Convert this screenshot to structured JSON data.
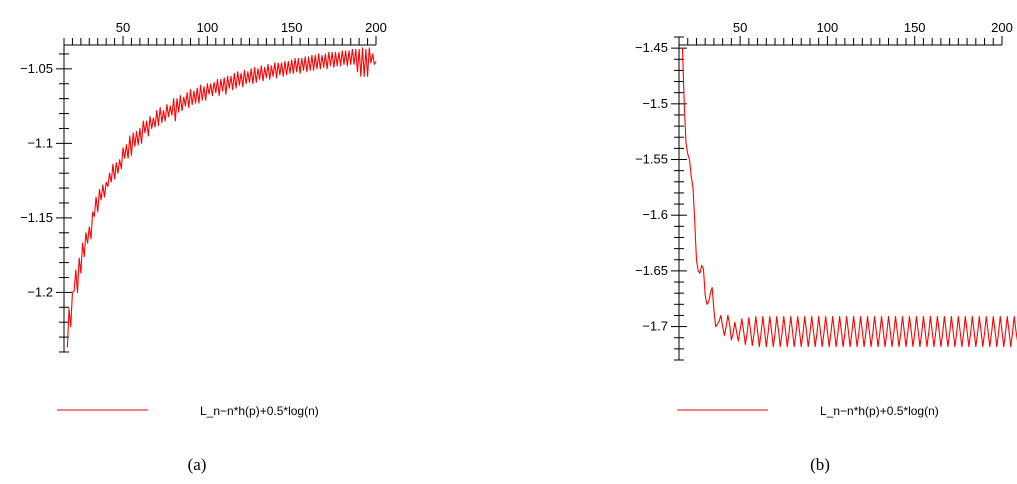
{
  "colors": {
    "series": "#ff0000",
    "axes": "#000000"
  },
  "chart_data": [
    {
      "type": "line",
      "caption": "(a)",
      "xlim": [
        15,
        200
      ],
      "ylim": [
        -1.24,
        -1.034
      ],
      "x_ticks": [
        50,
        100,
        150,
        200
      ],
      "x_tick_labels": [
        "50",
        "100",
        "150",
        "200"
      ],
      "y_ticks": [
        -1.05,
        -1.1,
        -1.15,
        -1.2
      ],
      "y_tick_labels": [
        "-1.05",
        "-1.1",
        "-1.15",
        "-1.2"
      ],
      "x_axis_position": "top",
      "grid": false,
      "legend_position": "bottom",
      "series": [
        {
          "name": "L_n-n*h(p)+0.5*log(n)",
          "x_start": 17,
          "x_step": 1,
          "values": [
            -1.237,
            -1.211,
            -1.223,
            -1.2,
            -1.199,
            -1.185,
            -1.2,
            -1.177,
            -1.187,
            -1.167,
            -1.176,
            -1.16,
            -1.167,
            -1.156,
            -1.164,
            -1.146,
            -1.149,
            -1.136,
            -1.146,
            -1.131,
            -1.138,
            -1.128,
            -1.136,
            -1.126,
            -1.129,
            -1.12,
            -1.126,
            -1.114,
            -1.124,
            -1.113,
            -1.12,
            -1.111,
            -1.117,
            -1.103,
            -1.11,
            -1.101,
            -1.11,
            -1.095,
            -1.108,
            -1.093,
            -1.102,
            -1.092,
            -1.101,
            -1.09,
            -1.1,
            -1.085,
            -1.093,
            -1.085,
            -1.095,
            -1.082,
            -1.09,
            -1.083,
            -1.089,
            -1.078,
            -1.088,
            -1.076,
            -1.086,
            -1.078,
            -1.085,
            -1.074,
            -1.082,
            -1.075,
            -1.081,
            -1.07,
            -1.085,
            -1.07,
            -1.079,
            -1.068,
            -1.078,
            -1.069,
            -1.075,
            -1.066,
            -1.076,
            -1.064,
            -1.074,
            -1.065,
            -1.073,
            -1.063,
            -1.073,
            -1.061,
            -1.071,
            -1.062,
            -1.071,
            -1.06,
            -1.067,
            -1.06,
            -1.068,
            -1.059,
            -1.066,
            -1.057,
            -1.068,
            -1.057,
            -1.065,
            -1.056,
            -1.067,
            -1.055,
            -1.063,
            -1.055,
            -1.064,
            -1.053,
            -1.063,
            -1.052,
            -1.061,
            -1.053,
            -1.062,
            -1.051,
            -1.06,
            -1.052,
            -1.059,
            -1.05,
            -1.06,
            -1.049,
            -1.059,
            -1.05,
            -1.057,
            -1.048,
            -1.058,
            -1.049,
            -1.056,
            -1.047,
            -1.057,
            -1.048,
            -1.055,
            -1.046,
            -1.056,
            -1.046,
            -1.054,
            -1.046,
            -1.055,
            -1.045,
            -1.054,
            -1.045,
            -1.053,
            -1.044,
            -1.053,
            -1.043,
            -1.052,
            -1.043,
            -1.053,
            -1.043,
            -1.051,
            -1.042,
            -1.052,
            -1.042,
            -1.051,
            -1.041,
            -1.051,
            -1.041,
            -1.05,
            -1.04,
            -1.05,
            -1.041,
            -1.049,
            -1.04,
            -1.05,
            -1.039,
            -1.048,
            -1.039,
            -1.049,
            -1.039,
            -1.048,
            -1.039,
            -1.048,
            -1.038,
            -1.047,
            -1.038,
            -1.048,
            -1.038,
            -1.047,
            -1.037,
            -1.047,
            -1.037,
            -1.052,
            -1.037,
            -1.055,
            -1.036,
            -1.055,
            -1.037,
            -1.055,
            -1.036,
            -1.046,
            -1.04,
            -1.047,
            -1.045
          ]
        }
      ]
    },
    {
      "type": "line",
      "caption": "(b)",
      "xlim": [
        15,
        200
      ],
      "ylim": [
        -1.73,
        -1.44
      ],
      "x_ticks": [
        50,
        100,
        150,
        200
      ],
      "x_tick_labels": [
        "50",
        "100",
        "150",
        "200"
      ],
      "y_ticks": [
        -1.45,
        -1.5,
        -1.55,
        -1.6,
        -1.65,
        -1.7
      ],
      "y_tick_labels": [
        "-1.45",
        "-1.5",
        "-1.55",
        "-1.6",
        "-1.65",
        "-1.7"
      ],
      "x_axis_position": "top",
      "grid": false,
      "legend_position": "bottom",
      "series": [
        {
          "name": "L_n-n*h(p)+0.5*log(n)",
          "x_start": 17,
          "x_step": 1,
          "values": [
            -1.45,
            -1.5,
            -1.535,
            -1.545,
            -1.55,
            -1.565,
            -1.575,
            -1.605,
            -1.64,
            -1.65,
            -1.652,
            -1.645,
            -1.648,
            -1.672,
            -1.68,
            -1.678,
            -1.67,
            -1.665,
            -1.685,
            -1.7,
            -1.698,
            -1.695,
            -1.69,
            -1.7,
            -1.708,
            -1.7,
            -1.69,
            -1.698,
            -1.712,
            -1.706,
            -1.696,
            -1.705,
            -1.713,
            -1.703,
            -1.693,
            -1.704,
            -1.716,
            -1.706,
            -1.692,
            -1.704,
            -1.717,
            -1.706,
            -1.691,
            -1.704,
            -1.718,
            -1.706,
            -1.691,
            -1.704,
            -1.718,
            -1.706,
            -1.691,
            -1.704,
            -1.718,
            -1.706,
            -1.691,
            -1.704,
            -1.718,
            -1.706,
            -1.691,
            -1.704,
            -1.718,
            -1.706,
            -1.691,
            -1.704,
            -1.718,
            -1.706,
            -1.691,
            -1.704,
            -1.718,
            -1.706,
            -1.691,
            -1.704,
            -1.718,
            -1.706,
            -1.691,
            -1.704,
            -1.718,
            -1.706,
            -1.691,
            -1.704,
            -1.718,
            -1.706,
            -1.691,
            -1.704,
            -1.718,
            -1.706,
            -1.691,
            -1.704,
            -1.718,
            -1.706,
            -1.691,
            -1.704,
            -1.718,
            -1.706,
            -1.691,
            -1.704,
            -1.718,
            -1.706,
            -1.691,
            -1.704,
            -1.718,
            -1.706,
            -1.691,
            -1.704,
            -1.718,
            -1.706,
            -1.691,
            -1.704,
            -1.718,
            -1.706,
            -1.691,
            -1.704,
            -1.718,
            -1.706,
            -1.691,
            -1.704,
            -1.718,
            -1.706,
            -1.691,
            -1.704,
            -1.718,
            -1.706,
            -1.691,
            -1.704,
            -1.718,
            -1.706,
            -1.691,
            -1.704,
            -1.718,
            -1.706,
            -1.691,
            -1.704,
            -1.718,
            -1.706,
            -1.691,
            -1.704,
            -1.718,
            -1.706,
            -1.691,
            -1.704,
            -1.718,
            -1.706,
            -1.691,
            -1.704,
            -1.718,
            -1.706,
            -1.691,
            -1.704,
            -1.718,
            -1.706,
            -1.691,
            -1.704,
            -1.718,
            -1.706,
            -1.691,
            -1.704,
            -1.718,
            -1.706,
            -1.691,
            -1.704,
            -1.718,
            -1.706,
            -1.691,
            -1.704,
            -1.718,
            -1.706,
            -1.691,
            -1.704,
            -1.718,
            -1.706,
            -1.691,
            -1.704,
            -1.718,
            -1.706,
            -1.691,
            -1.704,
            -1.718,
            -1.706,
            -1.691,
            -1.704,
            -1.718,
            -1.706,
            -1.691,
            -1.704,
            -1.718,
            -1.706,
            -1.691,
            -1.704,
            -1.718,
            -1.706,
            -1.691,
            -1.704,
            -1.714,
            -1.7,
            -1.69
          ]
        }
      ]
    }
  ]
}
